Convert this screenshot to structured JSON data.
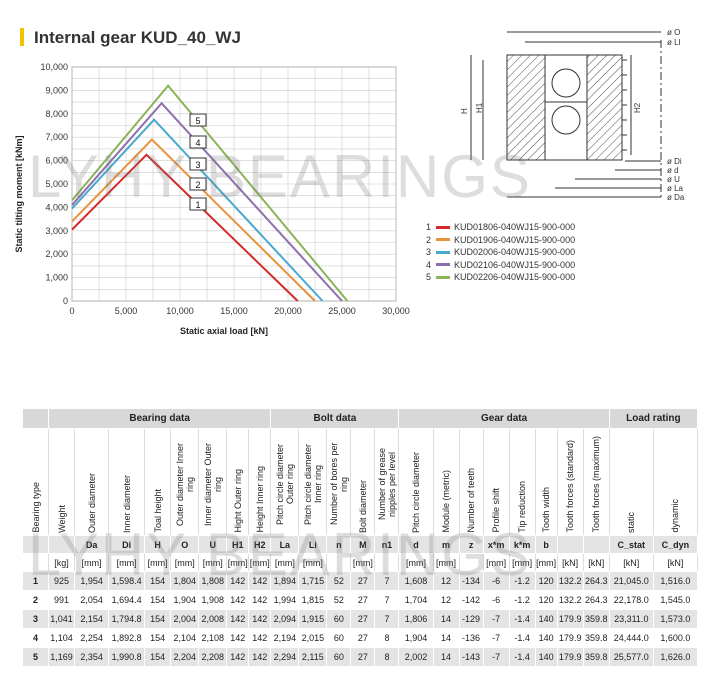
{
  "title": "Internal gear KUD_40_WJ",
  "watermark": "LYHY BEARINGS",
  "chart_data": {
    "type": "line",
    "xlabel": "Static axial load [kN]",
    "ylabel": "Static tilting moment [kNm]",
    "xlim": [
      0,
      30000
    ],
    "ylim": [
      0,
      10000
    ],
    "x_ticks": [
      "0",
      "5,000",
      "10,000",
      "15,000",
      "20,000",
      "25,000",
      "30,000"
    ],
    "y_ticks": [
      "0",
      "1,000",
      "2,000",
      "3,000",
      "4,000",
      "5,000",
      "6,000",
      "7,000",
      "8,000",
      "9,000",
      "10,000"
    ],
    "grid": true,
    "series": [
      {
        "name": "1",
        "color": "#d42a2a",
        "points": [
          [
            0,
            3050
          ],
          [
            6900,
            6250
          ],
          [
            20900,
            0
          ]
        ]
      },
      {
        "name": "2",
        "color": "#e8923c",
        "points": [
          [
            0,
            3400
          ],
          [
            7400,
            6900
          ],
          [
            22500,
            0
          ]
        ]
      },
      {
        "name": "3",
        "color": "#4aa8cf",
        "points": [
          [
            0,
            3950
          ],
          [
            7600,
            7750
          ],
          [
            23200,
            0
          ]
        ]
      },
      {
        "name": "4",
        "color": "#8e6fae",
        "points": [
          [
            0,
            4100
          ],
          [
            8300,
            8450
          ],
          [
            25000,
            0
          ]
        ]
      },
      {
        "name": "5",
        "color": "#8cb357",
        "points": [
          [
            0,
            4300
          ],
          [
            8900,
            9200
          ],
          [
            25500,
            0
          ]
        ]
      }
    ],
    "labels": [
      "5",
      "4",
      "3",
      "2",
      "1"
    ]
  },
  "legend": [
    {
      "num": "1",
      "label": "KUD01806-040WJ15-900-000",
      "color": "#d42a2a"
    },
    {
      "num": "2",
      "label": "KUD01906-040WJ15-900-000",
      "color": "#e8923c"
    },
    {
      "num": "3",
      "label": "KUD02006-040WJ15-900-000",
      "color": "#4aa8cf"
    },
    {
      "num": "4",
      "label": "KUD02106-040WJ15-900-000",
      "color": "#8e6fae"
    },
    {
      "num": "5",
      "label": "KUD02206-040WJ15-900-000",
      "color": "#8cb357"
    }
  ],
  "drawing": {
    "top_labels": [
      "ø O",
      "ø LI"
    ],
    "bottom_labels": [
      "ø Di",
      "ø d",
      "ø U",
      "ø La",
      "ø Da"
    ],
    "h_labels": [
      "H",
      "H1",
      "H2"
    ]
  },
  "table": {
    "groups": [
      "Bearing data",
      "Bolt data",
      "Gear data",
      "Load rating"
    ],
    "columns": [
      "Bearing type",
      "Weight",
      "Outer diameter",
      "Inner diameter",
      "Toal height",
      "Outer diameter Inner ring",
      "Inner diameter Outer ring",
      "Hight Outer ring",
      "Height Inner ring",
      "Pitch circle diameter Outer ring",
      "Pitch circle diameter Inner ring",
      "Number of bores per ring",
      "Bolt diameter",
      "Number of grease nipples per level",
      "Pitch circle diameter",
      "Module (metric)",
      "Number of teeth",
      "Profile shift",
      "Tip reduction",
      "Tooth width",
      "Tooth forces (standard)",
      "Tooth forces (maximum)",
      "static",
      "dynamic"
    ],
    "symbols": [
      "",
      "",
      "Da",
      "Di",
      "H",
      "O",
      "U",
      "H1",
      "H2",
      "La",
      "Li",
      "n",
      "M",
      "n1",
      "d",
      "m",
      "z",
      "x*m",
      "k*m",
      "b",
      "",
      "",
      "C_stat",
      "C_dyn"
    ],
    "units": [
      "",
      "[kg]",
      "[mm]",
      "[mm]",
      "[mm]",
      "[mm]",
      "[mm]",
      "[mm]",
      "[mm]",
      "[mm]",
      "[mm]",
      "",
      "[mm]",
      "",
      "[mm]",
      "[mm]",
      "",
      "[mm]",
      "[mm]",
      "[mm]",
      "[kN]",
      "[kN]",
      "[kN]",
      "[kN]"
    ],
    "rows": [
      [
        "1",
        "925",
        "1,954",
        "1,598.4",
        "154",
        "1,804",
        "1,808",
        "142",
        "142",
        "1,894",
        "1,715",
        "52",
        "27",
        "7",
        "1,608",
        "12",
        "-134",
        "-6",
        "-1.2",
        "120",
        "132.2",
        "264.3",
        "21,045.0",
        "1,516.0"
      ],
      [
        "2",
        "991",
        "2,054",
        "1,694.4",
        "154",
        "1,904",
        "1,908",
        "142",
        "142",
        "1,994",
        "1,815",
        "52",
        "27",
        "7",
        "1,704",
        "12",
        "-142",
        "-6",
        "-1.2",
        "120",
        "132.2",
        "264.3",
        "22,178.0",
        "1,545.0"
      ],
      [
        "3",
        "1,041",
        "2,154",
        "1,794.8",
        "154",
        "2,004",
        "2,008",
        "142",
        "142",
        "2,094",
        "1,915",
        "60",
        "27",
        "7",
        "1,806",
        "14",
        "-129",
        "-7",
        "-1.4",
        "140",
        "179.9",
        "359.8",
        "23,311.0",
        "1,573.0"
      ],
      [
        "4",
        "1,104",
        "2,254",
        "1,892.8",
        "154",
        "2,104",
        "2,108",
        "142",
        "142",
        "2,194",
        "2,015",
        "60",
        "27",
        "8",
        "1,904",
        "14",
        "-136",
        "-7",
        "-1.4",
        "140",
        "179.9",
        "359.8",
        "24,444.0",
        "1,600.0"
      ],
      [
        "5",
        "1,169",
        "2,354",
        "1,990.8",
        "154",
        "2,204",
        "2,208",
        "142",
        "142",
        "2,294",
        "2,115",
        "60",
        "27",
        "8",
        "2,002",
        "14",
        "-143",
        "-7",
        "-1.4",
        "140",
        "179.9",
        "359.8",
        "25,577.0",
        "1,626.0"
      ]
    ]
  }
}
